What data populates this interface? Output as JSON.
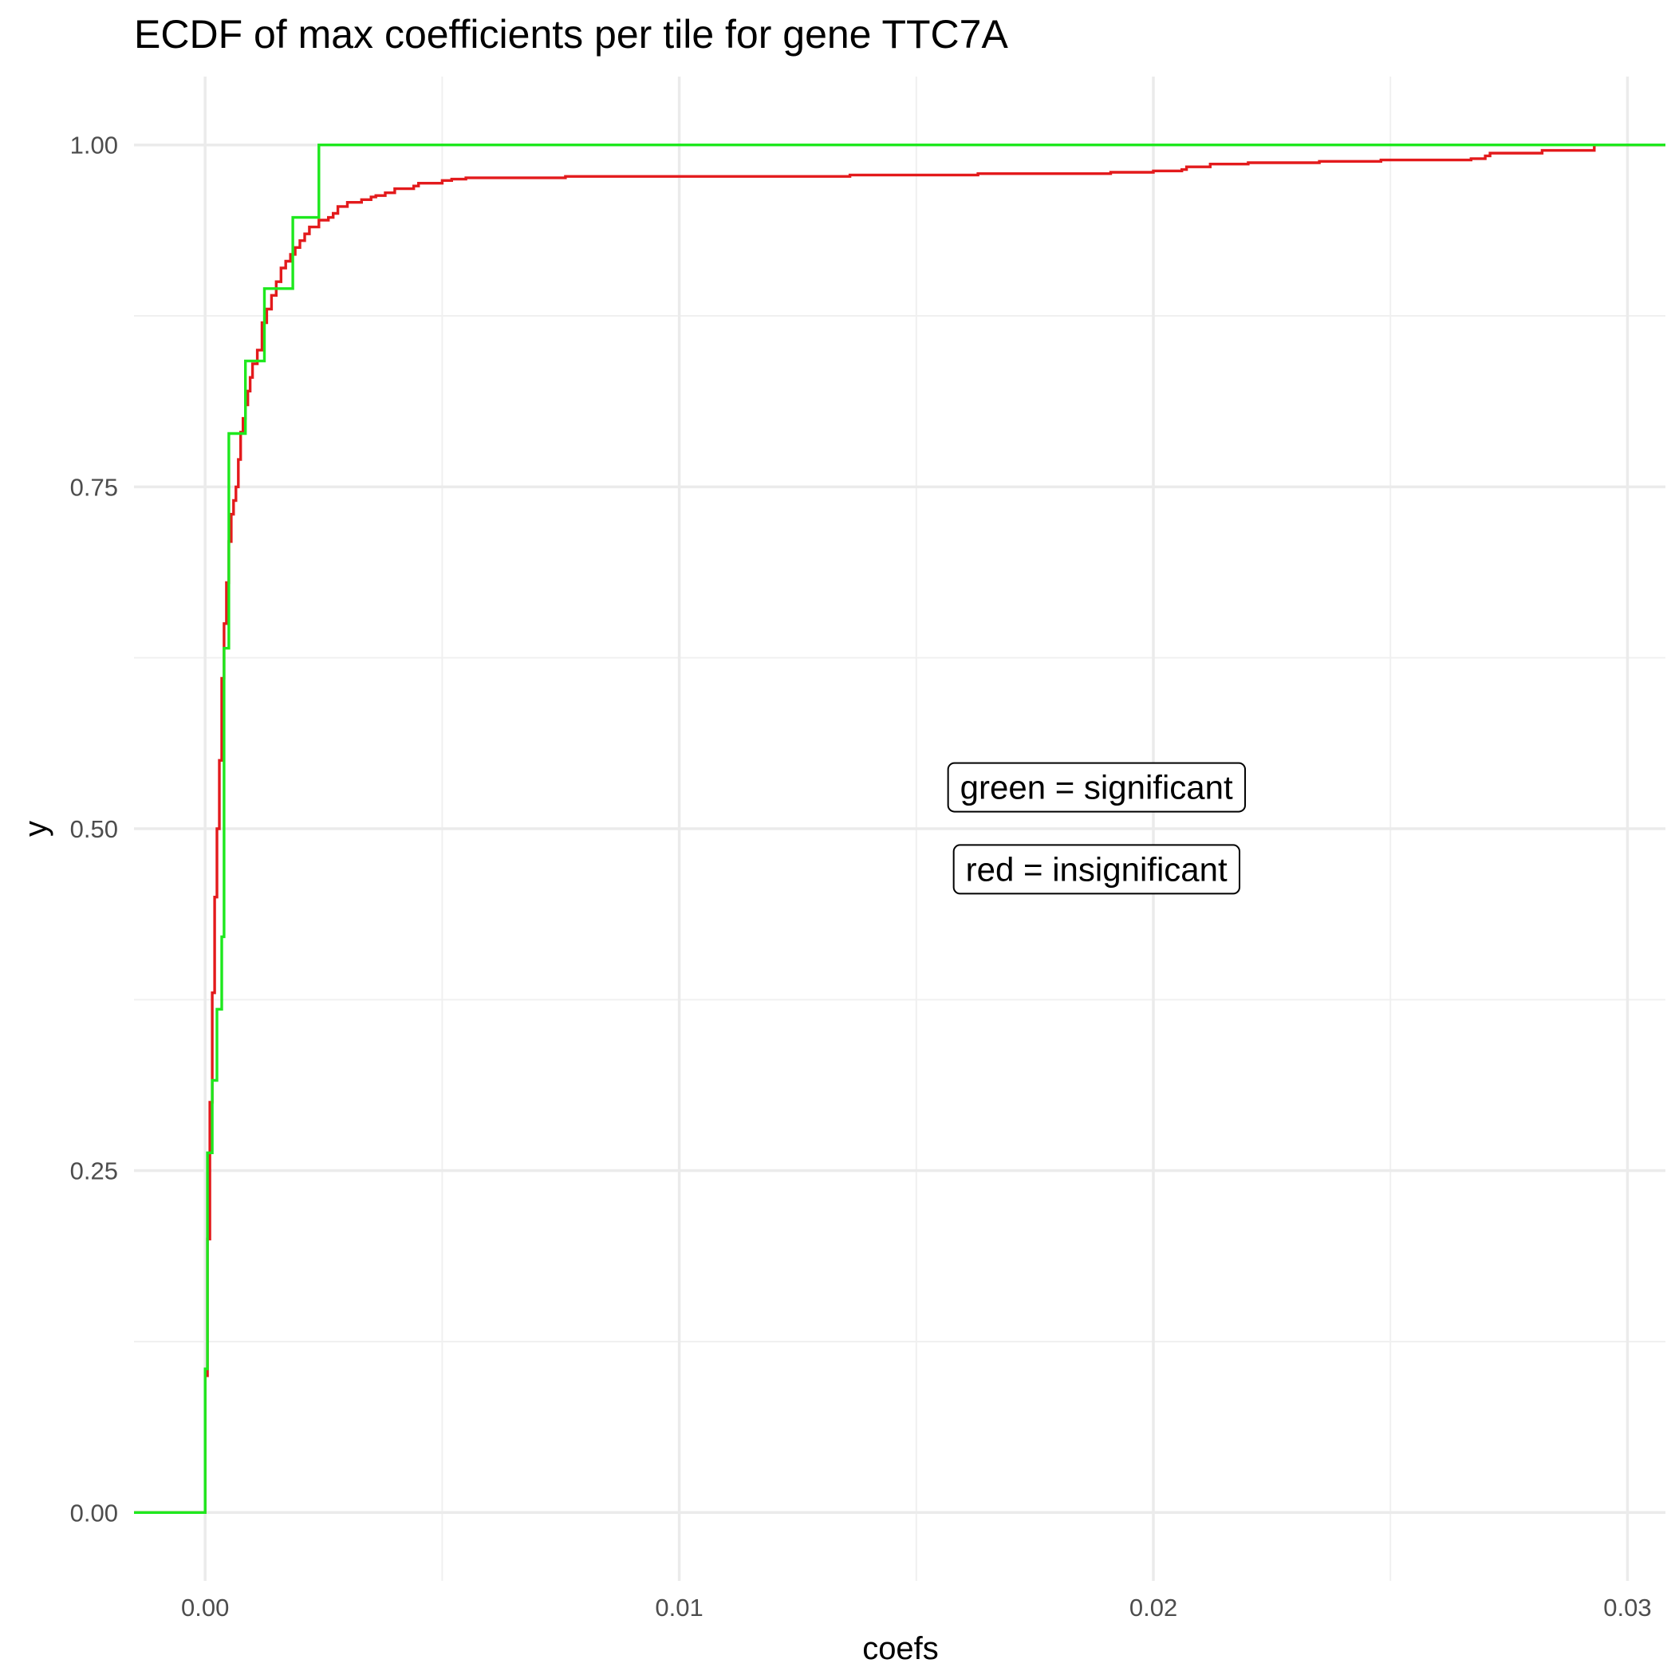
{
  "chart_data": {
    "type": "line",
    "title": "ECDF of max coefficients per tile for gene TTC7A",
    "xlabel": "coefs",
    "ylabel": "y",
    "xlim": [
      -0.0015,
      0.0308
    ],
    "ylim": [
      -0.05,
      1.05
    ],
    "x_ticks": [
      0.0,
      0.01,
      0.02,
      0.03
    ],
    "x_tick_labels": [
      "0.00",
      "0.01",
      "0.02",
      "0.03"
    ],
    "y_ticks": [
      0.0,
      0.25,
      0.5,
      0.75,
      1.0
    ],
    "y_tick_labels": [
      "0.00",
      "0.25",
      "0.50",
      "0.75",
      "1.00"
    ],
    "grid": true,
    "legend": "none",
    "annotations": [
      {
        "text": "green = significant",
        "x": 0.0188,
        "y": 0.53
      },
      {
        "text": "red = insignificant",
        "x": 0.0188,
        "y": 0.47
      }
    ],
    "series": [
      {
        "color": "#e31a1c",
        "step": true,
        "x": [
          -0.0015,
          0.0,
          5e-05,
          0.0001,
          0.00015,
          0.0002,
          0.00025,
          0.0003,
          0.00035,
          0.0004,
          0.00045,
          0.0005,
          0.00055,
          0.0006,
          0.00065,
          0.0007,
          0.00075,
          0.0008,
          0.00085,
          0.0009,
          0.00095,
          0.001,
          0.0011,
          0.0012,
          0.0013,
          0.0014,
          0.0015,
          0.0016,
          0.0017,
          0.0018,
          0.0019,
          0.002,
          0.0021,
          0.0022,
          0.0024,
          0.0026,
          0.0027,
          0.0028,
          0.003,
          0.0033,
          0.0035,
          0.0036,
          0.0038,
          0.004,
          0.0044,
          0.0045,
          0.005,
          0.0052,
          0.0055,
          0.0076,
          0.0136,
          0.0163,
          0.0191,
          0.02,
          0.0206,
          0.0207,
          0.0212,
          0.022,
          0.0235,
          0.0248,
          0.0267,
          0.027,
          0.0271,
          0.0282,
          0.0293
        ],
        "y": [
          0.0,
          0.1,
          0.2,
          0.3,
          0.38,
          0.45,
          0.5,
          0.55,
          0.61,
          0.65,
          0.68,
          0.71,
          0.73,
          0.74,
          0.75,
          0.77,
          0.79,
          0.8,
          0.81,
          0.82,
          0.83,
          0.84,
          0.85,
          0.87,
          0.88,
          0.89,
          0.9,
          0.91,
          0.915,
          0.92,
          0.925,
          0.93,
          0.935,
          0.94,
          0.945,
          0.947,
          0.95,
          0.955,
          0.958,
          0.96,
          0.962,
          0.963,
          0.965,
          0.968,
          0.97,
          0.972,
          0.974,
          0.975,
          0.976,
          0.977,
          0.978,
          0.979,
          0.98,
          0.981,
          0.982,
          0.984,
          0.986,
          0.987,
          0.988,
          0.989,
          0.99,
          0.992,
          0.994,
          0.996,
          1.0
        ]
      },
      {
        "color": "#1ee81e",
        "step": true,
        "x": [
          -0.0015,
          0.0,
          5e-05,
          0.00015,
          0.00025,
          0.00035,
          0.0004,
          0.0005,
          0.00085,
          0.00125,
          0.00185,
          0.0024
        ],
        "y": [
          0.0,
          0.105,
          0.263,
          0.316,
          0.368,
          0.421,
          0.632,
          0.789,
          0.842,
          0.895,
          0.947,
          1.0
        ]
      }
    ]
  }
}
